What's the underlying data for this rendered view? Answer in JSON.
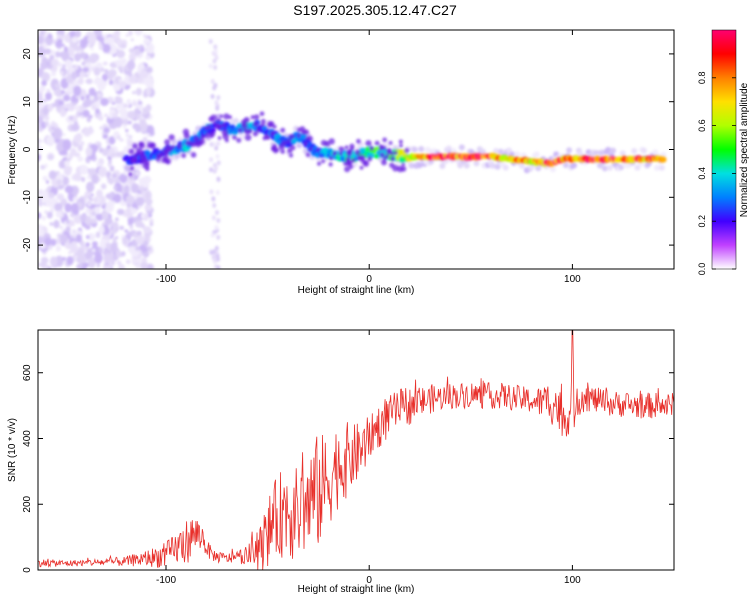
{
  "title": "S197.2025.305.12.47.C27",
  "colors": {
    "background": "#ffffff",
    "axis": "#000000",
    "snr_line": "#e8302b",
    "spectrogram_faint": "#c9b6f2",
    "spectrogram_mid": "#7b3cf0"
  },
  "chart_data": [
    {
      "type": "heatmap",
      "name": "spectrogram",
      "xlabel": "Height of straight line (km)",
      "ylabel": "Frequency (Hz)",
      "xlim": [
        -163,
        150
      ],
      "ylim": [
        -25,
        25
      ],
      "xticks": [
        -100,
        0,
        100
      ],
      "yticks": [
        -20,
        -10,
        0,
        10,
        20
      ],
      "colorbar": {
        "label": "Normalized spectral amplitude",
        "range": [
          0,
          1
        ],
        "ticks": [
          "0.0",
          "0.2",
          "0.4",
          "0.6",
          "0.8"
        ],
        "tick_values": [
          0.0,
          0.2,
          0.4,
          0.6,
          0.8
        ],
        "colormap": [
          "#ffffff",
          "#c040ff",
          "#4000ff",
          "#0080ff",
          "#00e0e0",
          "#00ff00",
          "#b0ff00",
          "#ffe000",
          "#ff8000",
          "#ff0000",
          "#ff0070"
        ]
      },
      "ridge": {
        "x": [
          -120,
          -110,
          -100,
          -90,
          -85,
          -80,
          -75,
          -65,
          -60,
          -55,
          -50,
          -45,
          -40,
          -35,
          -30,
          -25,
          -20,
          -10,
          0,
          10,
          20,
          30,
          40,
          50,
          60,
          70,
          80,
          90,
          95,
          100,
          110,
          120,
          130,
          145
        ],
        "frequency_hz": [
          -2.5,
          -1.5,
          -0.5,
          1,
          2,
          4,
          5,
          4,
          5,
          5,
          4,
          2,
          1,
          3,
          1,
          -1,
          -1,
          -1.5,
          -0.5,
          -1,
          -1.5,
          -1.5,
          -1.5,
          -1.5,
          -1.5,
          -2,
          -2.5,
          -3,
          -2,
          -2,
          -2,
          -2,
          -2,
          -2
        ],
        "amplitude": [
          0.2,
          0.25,
          0.3,
          0.35,
          0.35,
          0.3,
          0.25,
          0.3,
          0.35,
          0.3,
          0.25,
          0.3,
          0.3,
          0.3,
          0.25,
          0.3,
          0.35,
          0.4,
          0.45,
          0.5,
          0.6,
          0.85,
          0.9,
          0.95,
          0.9,
          0.75,
          0.8,
          0.9,
          0.85,
          0.85,
          0.95,
          0.95,
          0.9,
          0.85
        ]
      },
      "noise_region_x": [
        -163,
        -115
      ]
    },
    {
      "type": "line",
      "name": "snr",
      "xlabel": "Height of straight line (km)",
      "ylabel": "SNR (10 * v/v)",
      "xlim": [
        -163,
        150
      ],
      "ylim": [
        0,
        730
      ],
      "xticks": [
        -100,
        0,
        100
      ],
      "yticks": [
        0,
        200,
        400,
        600
      ],
      "series": [
        {
          "name": "SNR",
          "x": [
            -163,
            -150,
            -140,
            -130,
            -120,
            -110,
            -100,
            -95,
            -90,
            -86,
            -82,
            -80,
            -78,
            -75,
            -70,
            -65,
            -60,
            -55,
            -52,
            -50,
            -48,
            -45,
            -42,
            -40,
            -38,
            -35,
            -32,
            -30,
            -28,
            -25,
            -22,
            -20,
            -18,
            -15,
            -12,
            -10,
            -8,
            -5,
            -2,
            0,
            2,
            5,
            8,
            10,
            12,
            15,
            18,
            20,
            22,
            25,
            28,
            30,
            35,
            40,
            45,
            50,
            55,
            60,
            65,
            70,
            75,
            80,
            85,
            88,
            90,
            92,
            94,
            96,
            98,
            100,
            102,
            105,
            110,
            115,
            120,
            125,
            130,
            135,
            140,
            145,
            150
          ],
          "mean": [
            22,
            20,
            22,
            24,
            26,
            35,
            45,
            65,
            85,
            110,
            100,
            70,
            50,
            40,
            35,
            40,
            45,
            55,
            80,
            110,
            140,
            160,
            180,
            190,
            175,
            170,
            190,
            200,
            220,
            240,
            255,
            270,
            300,
            320,
            330,
            340,
            345,
            360,
            380,
            400,
            420,
            440,
            460,
            470,
            480,
            490,
            500,
            500,
            505,
            510,
            515,
            520,
            525,
            530,
            530,
            535,
            530,
            530,
            530,
            525,
            520,
            515,
            510,
            515,
            520,
            500,
            480,
            460,
            470,
            500,
            520,
            530,
            520,
            510,
            505,
            505,
            500,
            500,
            500,
            500,
            500
          ],
          "spread": [
            12,
            10,
            10,
            12,
            15,
            25,
            40,
            50,
            70,
            60,
            40,
            30,
            22,
            18,
            15,
            20,
            30,
            60,
            80,
            100,
            110,
            130,
            140,
            150,
            150,
            140,
            150,
            160,
            170,
            180,
            160,
            150,
            140,
            130,
            120,
            110,
            100,
            90,
            80,
            70,
            60,
            70,
            70,
            60,
            60,
            60,
            60,
            60,
            50,
            50,
            45,
            45,
            40,
            40,
            40,
            40,
            40,
            40,
            40,
            40,
            40,
            40,
            50,
            60,
            80,
            80,
            70,
            60,
            60,
            90,
            70,
            50,
            40,
            40,
            40,
            40,
            40,
            40,
            40,
            40,
            40
          ]
        }
      ],
      "peak": {
        "x": 100,
        "y": 730
      }
    }
  ]
}
